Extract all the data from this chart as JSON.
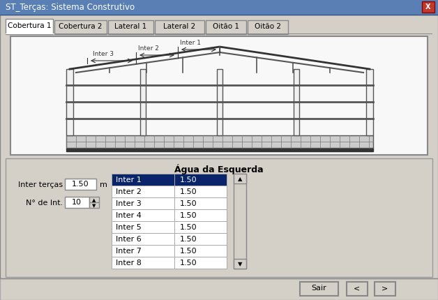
{
  "title": "ST_Terças: Sistema Construtivo",
  "tabs": [
    "Cobertura 1",
    "Cobertura 2",
    "Lateral 1",
    "Lateral 2",
    "Oitão 1",
    "Oitão 2"
  ],
  "active_tab": 0,
  "section_title": "Água da Esquerda",
  "label_inter_tercas": "Inter terças",
  "label_inter_tercas_value": "1.50",
  "label_inter_tercas_unit": "m",
  "label_n_int": "N° de Int.",
  "label_n_int_value": "10",
  "table_rows": [
    [
      "Inter 1",
      "1.50"
    ],
    [
      "Inter 2",
      "1.50"
    ],
    [
      "Inter 3",
      "1.50"
    ],
    [
      "Inter 4",
      "1.50"
    ],
    [
      "Inter 5",
      "1.50"
    ],
    [
      "Inter 6",
      "1.50"
    ],
    [
      "Inter 7",
      "1.50"
    ],
    [
      "Inter 8",
      "1.50"
    ]
  ],
  "active_row": 0,
  "buttons": [
    "Sair",
    "<",
    ">"
  ],
  "bg_color": "#d4d0c8",
  "dialog_bg": "#d4d0c8",
  "title_bar_color": "#0a246a",
  "title_bar_text_color": "#ffffff",
  "close_btn_color": "#c0392b",
  "tab_active_bg": "#ffffff",
  "tab_inactive_bg": "#d4d0c8",
  "canvas_bg": "#ffffff",
  "table_header_bg": "#ffffff",
  "row_active_bg": "#0a246a",
  "row_active_fg": "#ffffff",
  "row_inactive_bg": "#ffffff",
  "row_inactive_fg": "#000000",
  "input_bg": "#ffffff",
  "grid_line_color": "#999999"
}
